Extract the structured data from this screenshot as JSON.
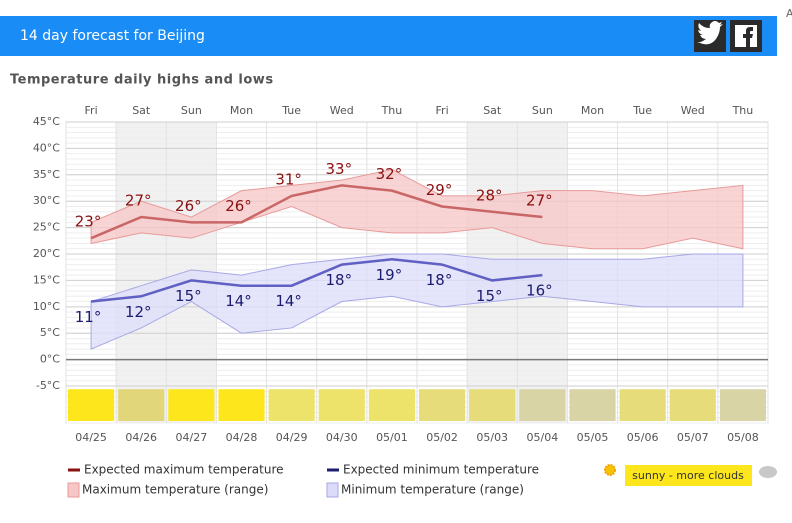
{
  "header": {
    "title": "14 day forecast for Beijing",
    "corner": "A"
  },
  "chart_data": {
    "type": "line",
    "title": "Temperature daily highs and lows",
    "categories": [
      "Fri",
      "Sat",
      "Sun",
      "Mon",
      "Tue",
      "Wed",
      "Thu",
      "Fri",
      "Sat",
      "Sun",
      "Mon",
      "Tue",
      "Wed",
      "Thu"
    ],
    "dates": [
      "04/25",
      "04/26",
      "04/27",
      "04/28",
      "04/29",
      "04/30",
      "05/01",
      "05/02",
      "05/03",
      "05/04",
      "05/05",
      "05/06",
      "05/07",
      "05/08"
    ],
    "ylim": [
      -12,
      45
    ],
    "yticks": [
      {
        "value": 45,
        "label": "45°C"
      },
      {
        "value": 40,
        "label": "40°C"
      },
      {
        "value": 35,
        "label": "35°C"
      },
      {
        "value": 30,
        "label": "30°C"
      },
      {
        "value": 25,
        "label": "25°C"
      },
      {
        "value": 20,
        "label": "20°C"
      },
      {
        "value": 15,
        "label": "15°C"
      },
      {
        "value": 10,
        "label": "10°C"
      },
      {
        "value": 5,
        "label": "5°C"
      },
      {
        "value": 0,
        "label": "0°C"
      },
      {
        "value": -5,
        "label": "-5°C"
      }
    ],
    "grid": true,
    "series": [
      {
        "name": "Expected maximum temperature",
        "color": "#c96767",
        "label_color": "#8b1010",
        "values": [
          23,
          27,
          26,
          26,
          31,
          33,
          32,
          29,
          28,
          27,
          null,
          null,
          null,
          null
        ],
        "value_labels": [
          "23°",
          "27°",
          "26°",
          "26°",
          "31°",
          "33°",
          "32°",
          "29°",
          "28°",
          "27°",
          null,
          null,
          null,
          null
        ]
      },
      {
        "name": "Expected minimum temperature",
        "color": "#5f5fc4",
        "label_color": "#1c1c70",
        "values": [
          11,
          12,
          15,
          14,
          14,
          18,
          19,
          18,
          15,
          16,
          null,
          null,
          null,
          null
        ],
        "value_labels": [
          "11°",
          "12°",
          "15°",
          "14°",
          "14°",
          "18°",
          "19°",
          "18°",
          "15°",
          "16°",
          null,
          null,
          null,
          null
        ]
      }
    ],
    "ranges": [
      {
        "name": "Maximum temperature (range)",
        "color": "#f7c6c6",
        "edge": "#e89a9a",
        "high": [
          26,
          30,
          27,
          32,
          33,
          34,
          36,
          31,
          31,
          32,
          32,
          31,
          32,
          33
        ],
        "low": [
          22,
          24,
          23,
          26,
          29,
          25,
          24,
          24,
          25,
          22,
          21,
          21,
          23,
          21
        ]
      },
      {
        "name": "Minimum temperature (range)",
        "color": "#dcdcfa",
        "edge": "#a8a8e6",
        "high": [
          11,
          14,
          17,
          16,
          18,
          19,
          20,
          20,
          19,
          19,
          19,
          19,
          20,
          20
        ],
        "low": [
          2,
          6,
          11,
          5,
          6,
          11,
          12,
          10,
          11,
          12,
          11,
          10,
          10,
          10
        ]
      }
    ],
    "weather": {
      "label": "sunny - more clouds",
      "colors": [
        "#fde61c",
        "#e2d67a",
        "#fde61c",
        "#fde61c",
        "#ede26a",
        "#ede26a",
        "#ede26a",
        "#e6dc7a",
        "#e6dc7a",
        "#d9d4a6",
        "#d9d4a6",
        "#e6dc7a",
        "#e6dc7a",
        "#d9d4a6"
      ]
    }
  }
}
